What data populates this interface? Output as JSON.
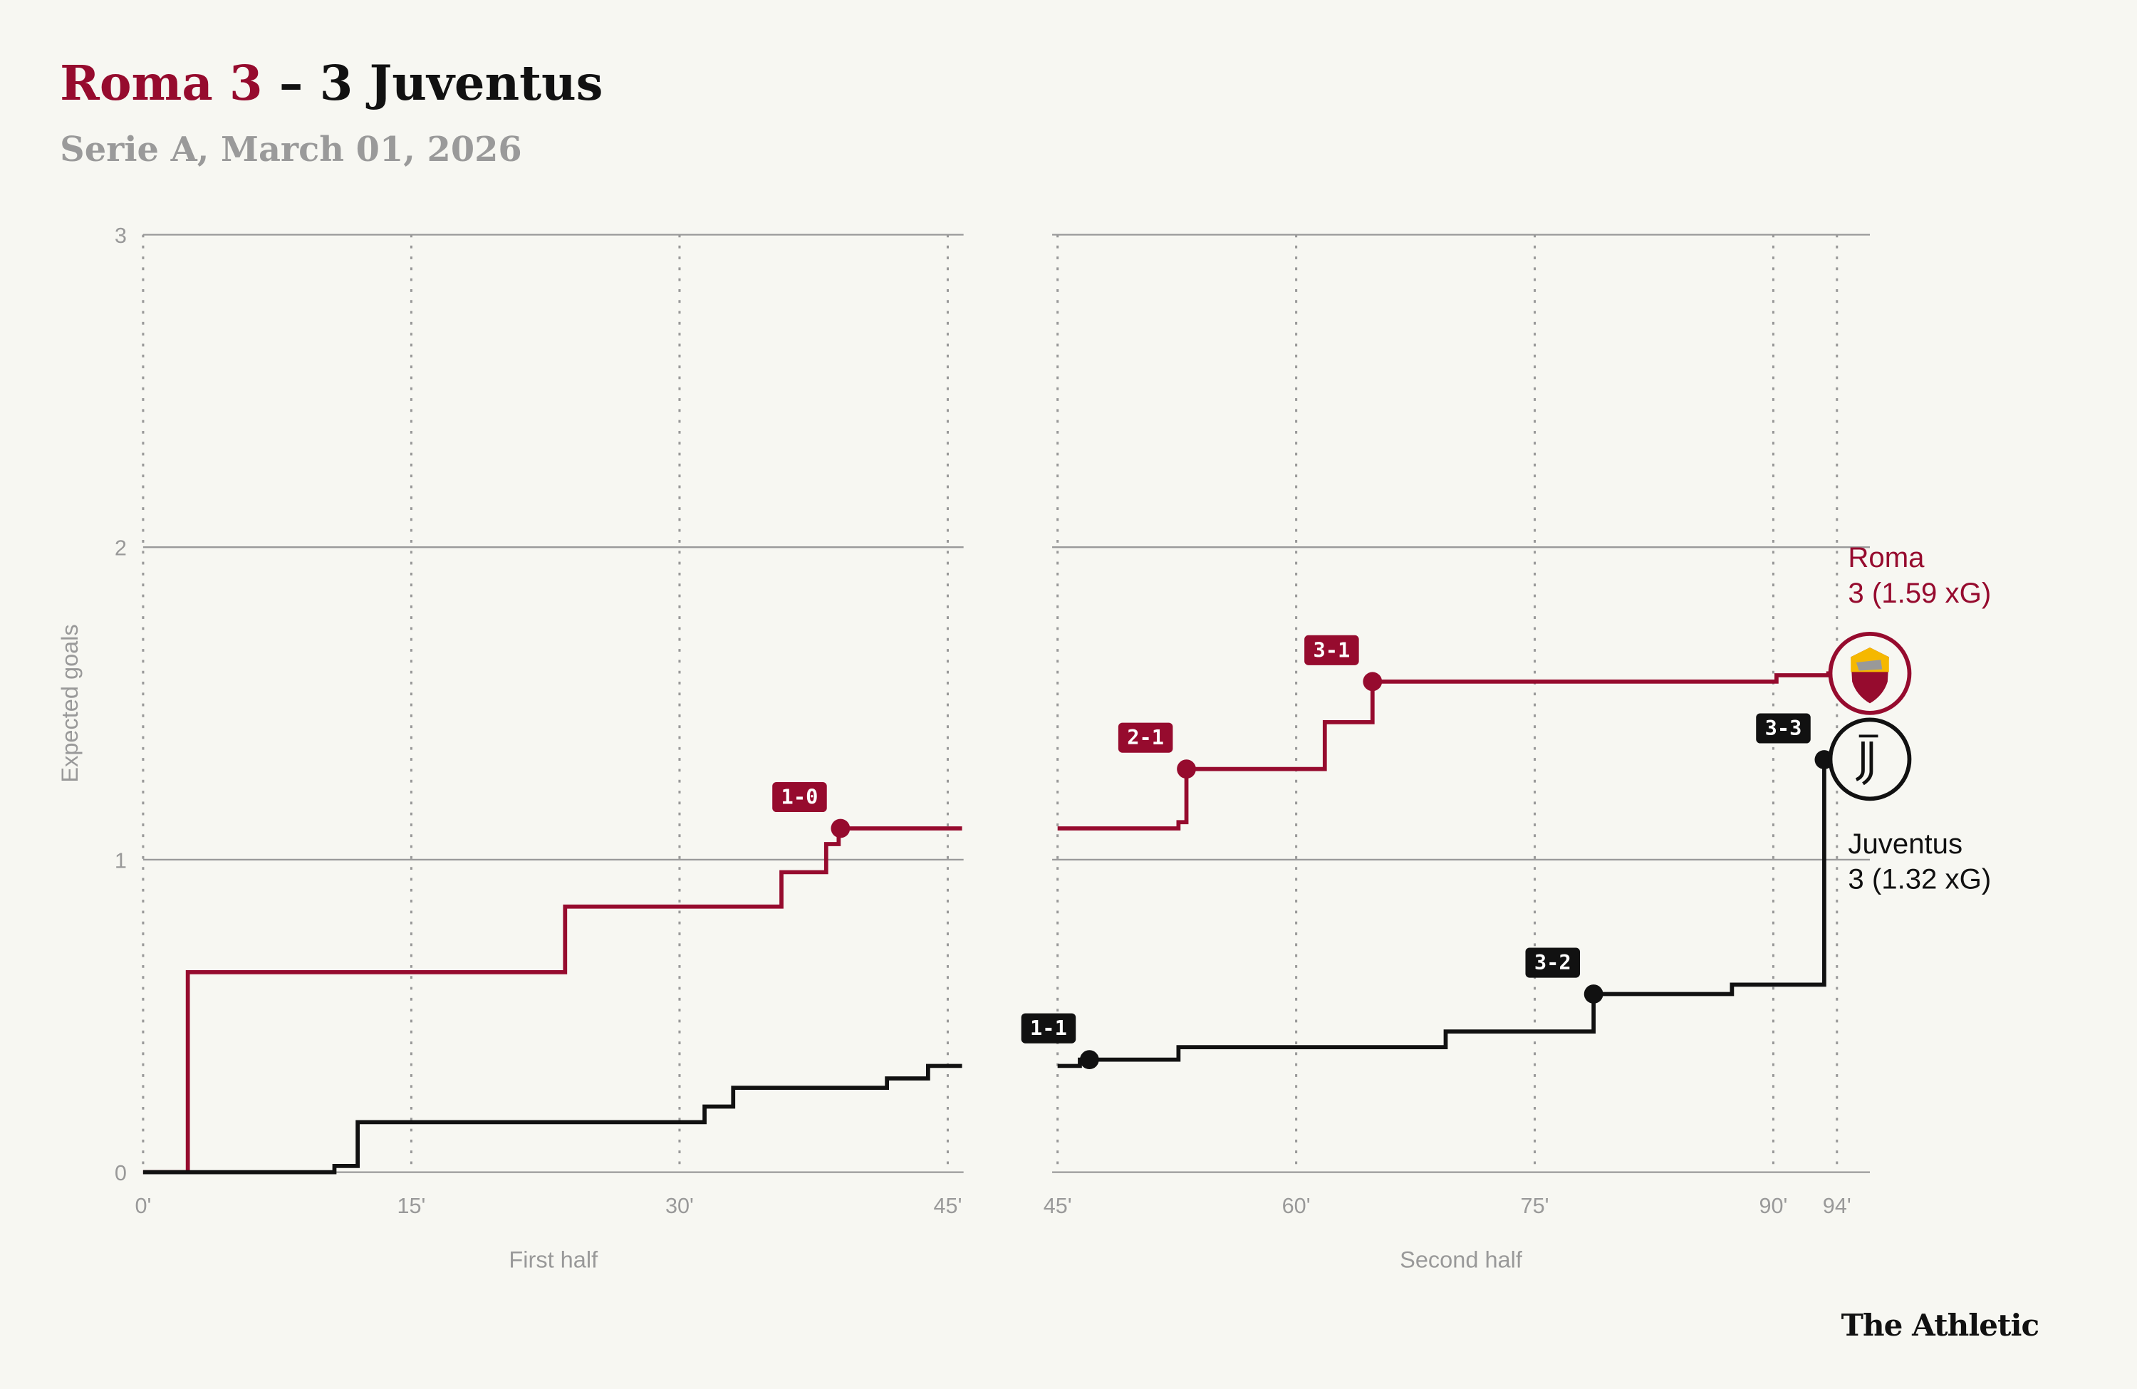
{
  "header": {
    "home": "Roma 3",
    "sep": " – ",
    "away": "3 Juventus",
    "subtitle": "Serie A, March 01, 2026"
  },
  "brand": "The Athletic",
  "colors": {
    "roma": "#960b2e",
    "juve": "#111111",
    "grid": "#999999",
    "bg": "#f7f7f2"
  },
  "chart_data": {
    "type": "line",
    "ylabel": "Expected goals",
    "ylim": [
      0,
      3
    ],
    "yticks": [
      "0",
      "1",
      "2",
      "3"
    ],
    "panels": [
      {
        "label": "First half",
        "xlim": [
          0,
          45.8
        ],
        "ticks": [
          0,
          15,
          30,
          45
        ],
        "tick_labels": [
          "0'",
          "15'",
          "30'",
          "45'"
        ]
      },
      {
        "label": "Second half",
        "xlim": [
          44.7,
          96.5
        ],
        "ticks": [
          45,
          60,
          75,
          90,
          94
        ],
        "tick_labels": [
          "45'",
          "60'",
          "75'",
          "90'",
          "94'"
        ]
      }
    ],
    "series": [
      {
        "name": "Roma",
        "summary": "3 (1.59 xG)",
        "color": "#960b2e",
        "first_half": [
          [
            0,
            0
          ],
          [
            2.5,
            0.64
          ],
          [
            23.6,
            0.85
          ],
          [
            35.7,
            0.96
          ],
          [
            38.2,
            1.05
          ],
          [
            38.9,
            1.1
          ],
          [
            45.8,
            1.1
          ]
        ],
        "second_half": [
          [
            45,
            1.1
          ],
          [
            52.6,
            1.12
          ],
          [
            53.1,
            1.29
          ],
          [
            61.8,
            1.44
          ],
          [
            64.8,
            1.57
          ],
          [
            90.2,
            1.59
          ],
          [
            93.5,
            1.59
          ]
        ]
      },
      {
        "name": "Juventus",
        "summary": "3 (1.32 xG)",
        "color": "#111111",
        "first_half": [
          [
            0,
            0
          ],
          [
            10.7,
            0.02
          ],
          [
            12,
            0.16
          ],
          [
            31.4,
            0.21
          ],
          [
            33,
            0.27
          ],
          [
            41.6,
            0.3
          ],
          [
            43.9,
            0.34
          ],
          [
            45.8,
            0.34
          ]
        ],
        "second_half": [
          [
            45,
            0.34
          ],
          [
            46.4,
            0.36
          ],
          [
            52.6,
            0.4
          ],
          [
            69.4,
            0.45
          ],
          [
            78.7,
            0.57
          ],
          [
            87.4,
            0.6
          ],
          [
            93.2,
            0.66
          ],
          [
            93.2,
            1.32
          ],
          [
            94.5,
            1.32
          ]
        ]
      }
    ],
    "goals": [
      {
        "team": "Roma",
        "half": 0,
        "minute": 39,
        "xg": 1.1,
        "score": "1-0"
      },
      {
        "team": "Juventus",
        "half": 1,
        "minute": 47,
        "xg": 0.36,
        "score": "1-1"
      },
      {
        "team": "Roma",
        "half": 1,
        "minute": 53.1,
        "xg": 1.29,
        "score": "2-1"
      },
      {
        "team": "Roma",
        "half": 1,
        "minute": 64.8,
        "xg": 1.57,
        "score": "3-1"
      },
      {
        "team": "Juventus",
        "half": 1,
        "minute": 78.7,
        "xg": 0.57,
        "score": "3-2"
      },
      {
        "team": "Juventus",
        "half": 1,
        "minute": 93.2,
        "xg": 1.32,
        "score": "3-3"
      }
    ]
  }
}
